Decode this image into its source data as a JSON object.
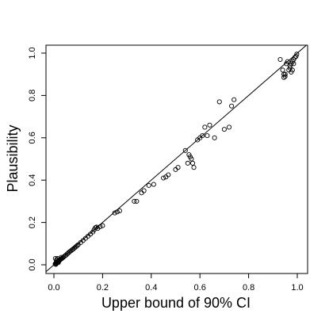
{
  "chart_data": {
    "type": "scatter",
    "title": "",
    "xlabel": "Upper bound of 90% CI",
    "ylabel": "Plausibility",
    "xlim": [
      0,
      1
    ],
    "ylim": [
      0,
      1
    ],
    "xticks": [
      0.0,
      0.2,
      0.4,
      0.6,
      0.8,
      1.0
    ],
    "yticks": [
      0.0,
      0.2,
      0.4,
      0.6,
      0.8,
      1.0
    ],
    "x_tick_labels": [
      "0.0",
      "0.2",
      "0.4",
      "0.6",
      "0.8",
      "1.0"
    ],
    "y_tick_labels": [
      "0.0",
      "0.2",
      "0.4",
      "0.6",
      "0.8",
      "1.0"
    ],
    "grid": false,
    "legend": "none",
    "marker": "open-circle",
    "marker_color": "#000000",
    "reference_line": {
      "type": "identity",
      "from": [
        0,
        0
      ],
      "to": [
        1,
        1
      ]
    },
    "points": {
      "x": [
        0.005,
        0.008,
        0.01,
        0.012,
        0.014,
        0.016,
        0.018,
        0.02,
        0.022,
        0.025,
        0.028,
        0.03,
        0.033,
        0.036,
        0.04,
        0.045,
        0.05,
        0.055,
        0.06,
        0.065,
        0.07,
        0.075,
        0.08,
        0.085,
        0.09,
        0.095,
        0.1,
        0.11,
        0.12,
        0.13,
        0.14,
        0.15,
        0.16,
        0.165,
        0.17,
        0.175,
        0.18,
        0.19,
        0.2,
        0.25,
        0.26,
        0.27,
        0.33,
        0.34,
        0.36,
        0.37,
        0.39,
        0.41,
        0.45,
        0.46,
        0.47,
        0.5,
        0.51,
        0.54,
        0.55,
        0.555,
        0.56,
        0.565,
        0.57,
        0.575,
        0.59,
        0.6,
        0.61,
        0.62,
        0.63,
        0.64,
        0.66,
        0.68,
        0.7,
        0.72,
        0.73,
        0.74,
        0.93,
        0.94,
        0.945,
        0.95,
        0.955,
        0.96,
        0.965,
        0.97,
        0.975,
        0.98,
        0.985,
        0.99,
        0.995,
        0.998,
        0.975,
        0.98,
        0.97,
        0.985,
        0.945,
        0.95,
        0.01,
        0.012,
        0.015,
        0.018,
        0.02,
        0.006,
        0.008,
        0.03
      ],
      "y": [
        0.004,
        0.006,
        0.009,
        0.011,
        0.012,
        0.015,
        0.017,
        0.019,
        0.021,
        0.023,
        0.026,
        0.028,
        0.03,
        0.033,
        0.037,
        0.042,
        0.046,
        0.052,
        0.057,
        0.062,
        0.066,
        0.071,
        0.075,
        0.08,
        0.085,
        0.09,
        0.095,
        0.105,
        0.115,
        0.125,
        0.135,
        0.145,
        0.155,
        0.165,
        0.175,
        0.178,
        0.172,
        0.18,
        0.185,
        0.245,
        0.25,
        0.255,
        0.3,
        0.3,
        0.34,
        0.35,
        0.375,
        0.38,
        0.41,
        0.415,
        0.425,
        0.45,
        0.46,
        0.54,
        0.48,
        0.52,
        0.51,
        0.5,
        0.48,
        0.46,
        0.59,
        0.6,
        0.61,
        0.65,
        0.61,
        0.66,
        0.6,
        0.77,
        0.64,
        0.65,
        0.75,
        0.78,
        0.97,
        0.92,
        0.9,
        0.89,
        0.95,
        0.96,
        0.92,
        0.94,
        0.95,
        0.96,
        0.97,
        0.98,
        0.985,
        0.995,
        0.91,
        0.92,
        0.93,
        0.95,
        0.885,
        0.9,
        0.02,
        0.025,
        0.03,
        0.01,
        0.015,
        0.03,
        0.002,
        0.035
      ]
    }
  }
}
